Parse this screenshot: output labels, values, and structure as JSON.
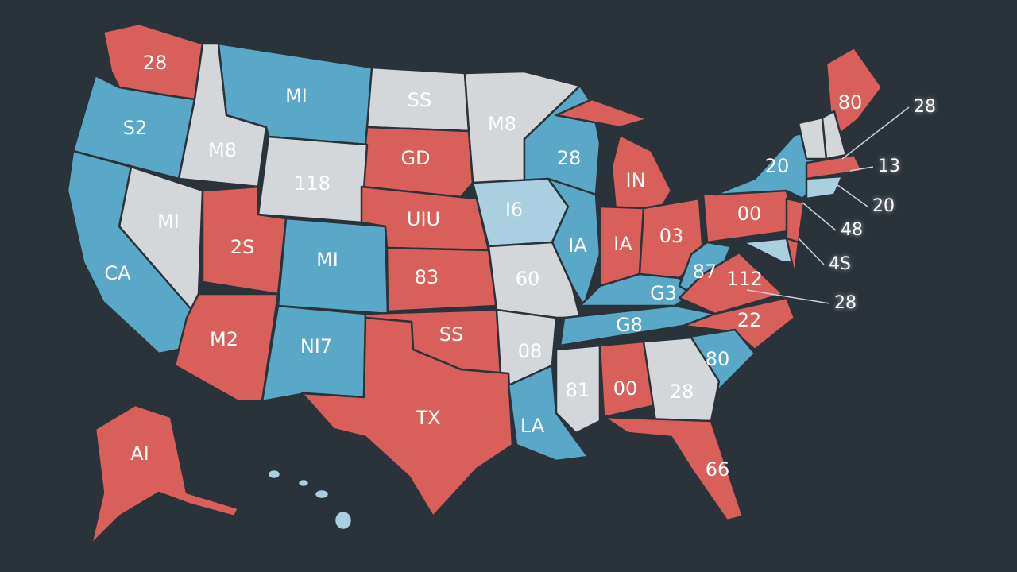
{
  "map": {
    "regions": [
      {
        "label": "28"
      },
      {
        "label": "S2"
      },
      {
        "label": "M8"
      },
      {
        "label": "MI"
      },
      {
        "label": "SS"
      },
      {
        "label": "M8"
      },
      {
        "label": "28"
      },
      {
        "label": "IN"
      },
      {
        "label": "GD"
      },
      {
        "label": "118"
      },
      {
        "label": "MI"
      },
      {
        "label": "CA"
      },
      {
        "label": "2S"
      },
      {
        "label": "MI"
      },
      {
        "label": "UIU"
      },
      {
        "label": "I6"
      },
      {
        "label": "IA"
      },
      {
        "label": "IA"
      },
      {
        "label": "03"
      },
      {
        "label": "00"
      },
      {
        "label": "20"
      },
      {
        "label": "80"
      },
      {
        "label": "83"
      },
      {
        "label": "60"
      },
      {
        "label": "G3"
      },
      {
        "label": "87"
      },
      {
        "label": "112"
      },
      {
        "label": "M2"
      },
      {
        "label": "NI7"
      },
      {
        "label": "SS"
      },
      {
        "label": "08"
      },
      {
        "label": "G8"
      },
      {
        "label": "22"
      },
      {
        "label": "80"
      },
      {
        "label": "81"
      },
      {
        "label": "00"
      },
      {
        "label": "28"
      },
      {
        "label": "TX"
      },
      {
        "label": "LA"
      },
      {
        "label": "66"
      },
      {
        "label": "AI"
      }
    ],
    "callouts": [
      {
        "label": "28"
      },
      {
        "label": "13"
      },
      {
        "label": "20"
      },
      {
        "label": "48"
      },
      {
        "label": "4S"
      },
      {
        "label": "28"
      }
    ]
  }
}
